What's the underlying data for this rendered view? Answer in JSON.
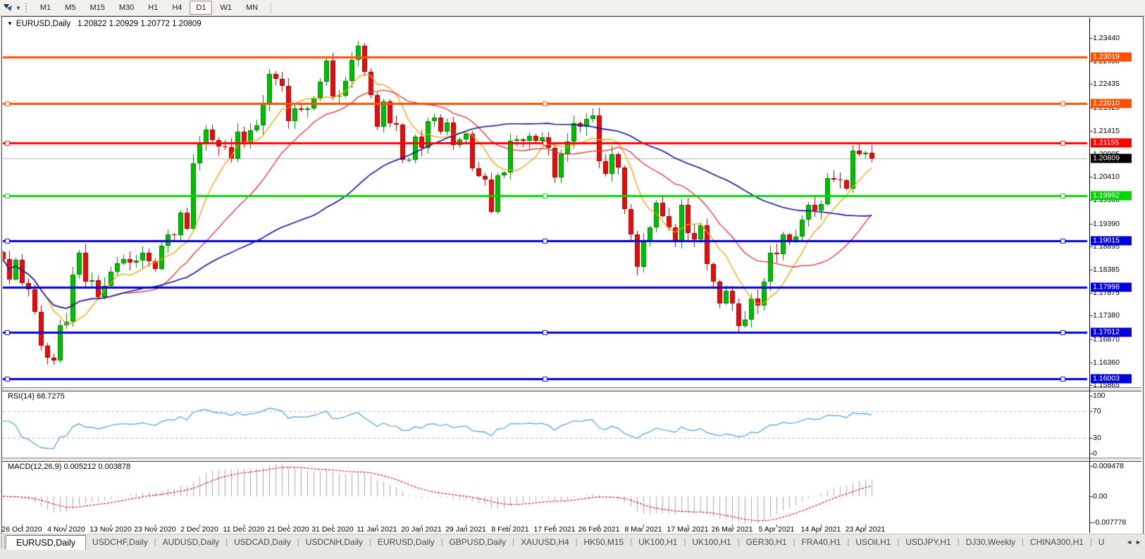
{
  "toolbar": {
    "drawing_tool_icon": "crosshair-draw-tool",
    "dropdown_caret": "▼",
    "timeframes": [
      {
        "label": "M1",
        "active": false
      },
      {
        "label": "M5",
        "active": false
      },
      {
        "label": "M15",
        "active": false
      },
      {
        "label": "M30",
        "active": false
      },
      {
        "label": "H1",
        "active": false
      },
      {
        "label": "H4",
        "active": false
      },
      {
        "label": "D1",
        "active": true
      },
      {
        "label": "W1",
        "active": false
      },
      {
        "label": "MN",
        "active": false
      }
    ]
  },
  "chart": {
    "title_symbol": "EURUSD,Daily",
    "title_quotes": "1.20822 1.20929 1.20772 1.20809",
    "title_caret": "▼"
  },
  "price_axis": {
    "ticks": [
      "1.23440",
      "1.22930",
      "1.22435",
      "1.21925",
      "1.21415",
      "1.20905",
      "1.20410",
      "1.19900",
      "1.19390",
      "1.18895",
      "1.18385",
      "1.17875",
      "1.17380",
      "1.16870",
      "1.16360",
      "1.15865"
    ],
    "current_price_label": "1.20809",
    "current_price_bg": "#000000"
  },
  "indicators": {
    "rsi_label": "RSI(14) 68.7275",
    "rsi_axis_ticks": [
      "100",
      "70",
      "30",
      "0"
    ],
    "macd_label": "MACD(12,26,9) 0.005212 0.003878",
    "macd_axis_ticks": [
      "0.009478",
      "0.00",
      "-0.007778"
    ]
  },
  "date_axis": {
    "labels": [
      "26 Oct 2020",
      "4 Nov 2020",
      "13 Nov 2020",
      "23 Nov 2020",
      "2 Dec 2020",
      "11 Dec 2020",
      "21 Dec 2020",
      "31 Dec 2020",
      "11 Jan 2021",
      "20 Jan 2021",
      "29 Jan 2021",
      "8 Feb 2021",
      "17 Feb 2021",
      "26 Feb 2021",
      "8 Mar 2021",
      "17 Mar 2021",
      "26 Mar 2021",
      "5 Apr 2021",
      "14 Apr 2021",
      "23 Apr 2021"
    ]
  },
  "tabs": {
    "items": [
      {
        "label": "EURUSD,Daily",
        "active": true
      },
      {
        "label": "USDCHF,Daily",
        "active": false
      },
      {
        "label": "AUDUSD,Daily",
        "active": false
      },
      {
        "label": "USDCAD,Daily",
        "active": false
      },
      {
        "label": "USDCNH,Daily",
        "active": false
      },
      {
        "label": "EURUSD,Daily",
        "active": false
      },
      {
        "label": "GBPUSD,Daily",
        "active": false
      },
      {
        "label": "XAUUSD,H4",
        "active": false
      },
      {
        "label": "HK50,M15",
        "active": false
      },
      {
        "label": "UK100,H1",
        "active": false
      },
      {
        "label": "UK100,H1",
        "active": false
      },
      {
        "label": "GER30,H1",
        "active": false
      },
      {
        "label": "FRA40,H1",
        "active": false
      },
      {
        "label": "USOil,H1",
        "active": false
      },
      {
        "label": "USDJPY,H1",
        "active": false
      },
      {
        "label": "DJ30,Weekly",
        "active": false
      },
      {
        "label": "CHINA300,H1",
        "active": false
      },
      {
        "label": "U",
        "active": false
      }
    ],
    "scroll_left": "◄",
    "scroll_right": "►"
  },
  "chart_data": {
    "type": "candlestick",
    "symbol": "EURUSD",
    "timeframe": "Daily",
    "ohlc_display": {
      "open": "1.20822",
      "high": "1.20929",
      "low": "1.20772",
      "close": "1.20809"
    },
    "current_price": 1.20809,
    "open_equals_previous_close": true,
    "closes": [
      1.1862,
      1.1817,
      1.186,
      1.181,
      1.1795,
      1.1747,
      1.1673,
      1.1647,
      1.164,
      1.1717,
      1.1725,
      1.1827,
      1.1875,
      1.1813,
      1.1815,
      1.1779,
      1.1803,
      1.1834,
      1.1852,
      1.1862,
      1.1854,
      1.1858,
      1.1875,
      1.1857,
      1.184,
      1.189,
      1.1915,
      1.1913,
      1.1963,
      1.1928,
      1.207,
      1.2115,
      1.2145,
      1.2121,
      1.2108,
      1.2106,
      1.2082,
      1.214,
      1.2113,
      1.2142,
      1.2153,
      1.22,
      1.2265,
      1.2255,
      1.224,
      1.2163,
      1.219,
      1.2187,
      1.219,
      1.2213,
      1.2248,
      1.2295,
      1.2216,
      1.2218,
      1.225,
      1.2296,
      1.2327,
      1.227,
      1.222,
      1.215,
      1.2206,
      1.2158,
      1.2155,
      1.2078,
      1.2078,
      1.2129,
      1.2105,
      1.2163,
      1.217,
      1.214,
      1.216,
      1.211,
      1.2122,
      1.2135,
      1.206,
      1.2043,
      1.2035,
      1.1964,
      1.2045,
      1.205,
      1.212,
      1.2122,
      1.212,
      1.213,
      1.212,
      1.2128,
      1.2105,
      1.204,
      1.209,
      1.2118,
      1.2158,
      1.215,
      1.2168,
      1.2175,
      1.2075,
      1.2048,
      1.209,
      1.2062,
      1.197,
      1.1915,
      1.1845,
      1.19,
      1.193,
      1.1985,
      1.1955,
      1.193,
      1.19,
      1.198,
      1.1918,
      1.1905,
      1.1935,
      1.185,
      1.1813,
      1.1765,
      1.1793,
      1.1765,
      1.1716,
      1.173,
      1.1776,
      1.176,
      1.1812,
      1.1875,
      1.1873,
      1.1916,
      1.19,
      1.191,
      1.1948,
      1.198,
      1.1967,
      1.1982,
      1.2038,
      1.2035,
      1.2033,
      1.2015,
      1.2098,
      1.209,
      1.2093,
      1.20809
    ],
    "candle_colors": {
      "bull": "#00C000",
      "bull_edge": "#007800",
      "bear": "#E01010",
      "bear_edge": "#980000"
    },
    "horizontal_levels": [
      {
        "price": 1.23019,
        "label": "1.23019",
        "color": "#FF5000",
        "handles": false
      },
      {
        "price": 1.2201,
        "label": "1.22010",
        "color": "#FF5000",
        "handles": true
      },
      {
        "price": 1.21155,
        "label": "1.21155",
        "color": "#FF0000",
        "handles": true
      },
      {
        "price": 1.19992,
        "label": "1.19992",
        "color": "#00D600",
        "handles": true
      },
      {
        "price": 1.19015,
        "label": "1.19015",
        "color": "#0000DC",
        "handles": true
      },
      {
        "price": 1.17998,
        "label": "1.17998",
        "color": "#0000DC",
        "handles": false
      },
      {
        "price": 1.17012,
        "label": "1.17012",
        "color": "#0000DC",
        "handles": true
      },
      {
        "price": 1.16003,
        "label": "1.16003",
        "color": "#0000DC",
        "handles": true
      }
    ],
    "current_price_line_color": "#B4B4B4",
    "moving_averages": [
      {
        "period": 8,
        "color": "#F0A000"
      },
      {
        "period": 20,
        "color": "#E03030"
      },
      {
        "period": 50,
        "color": "#1414A0"
      }
    ],
    "rsi": {
      "period": 14,
      "current": 68.7275,
      "levels": [
        70,
        30
      ],
      "scale": [
        0,
        100
      ],
      "line_color": "#4D9EE0"
    },
    "macd": {
      "fast": 12,
      "slow": 26,
      "signal_period": 9,
      "main_value": 0.005212,
      "signal_value": 0.003878,
      "scale_max": 0.009478,
      "scale_min": -0.007778,
      "histogram_color": "#ABABAB",
      "signal_color": "#CC0000"
    }
  }
}
